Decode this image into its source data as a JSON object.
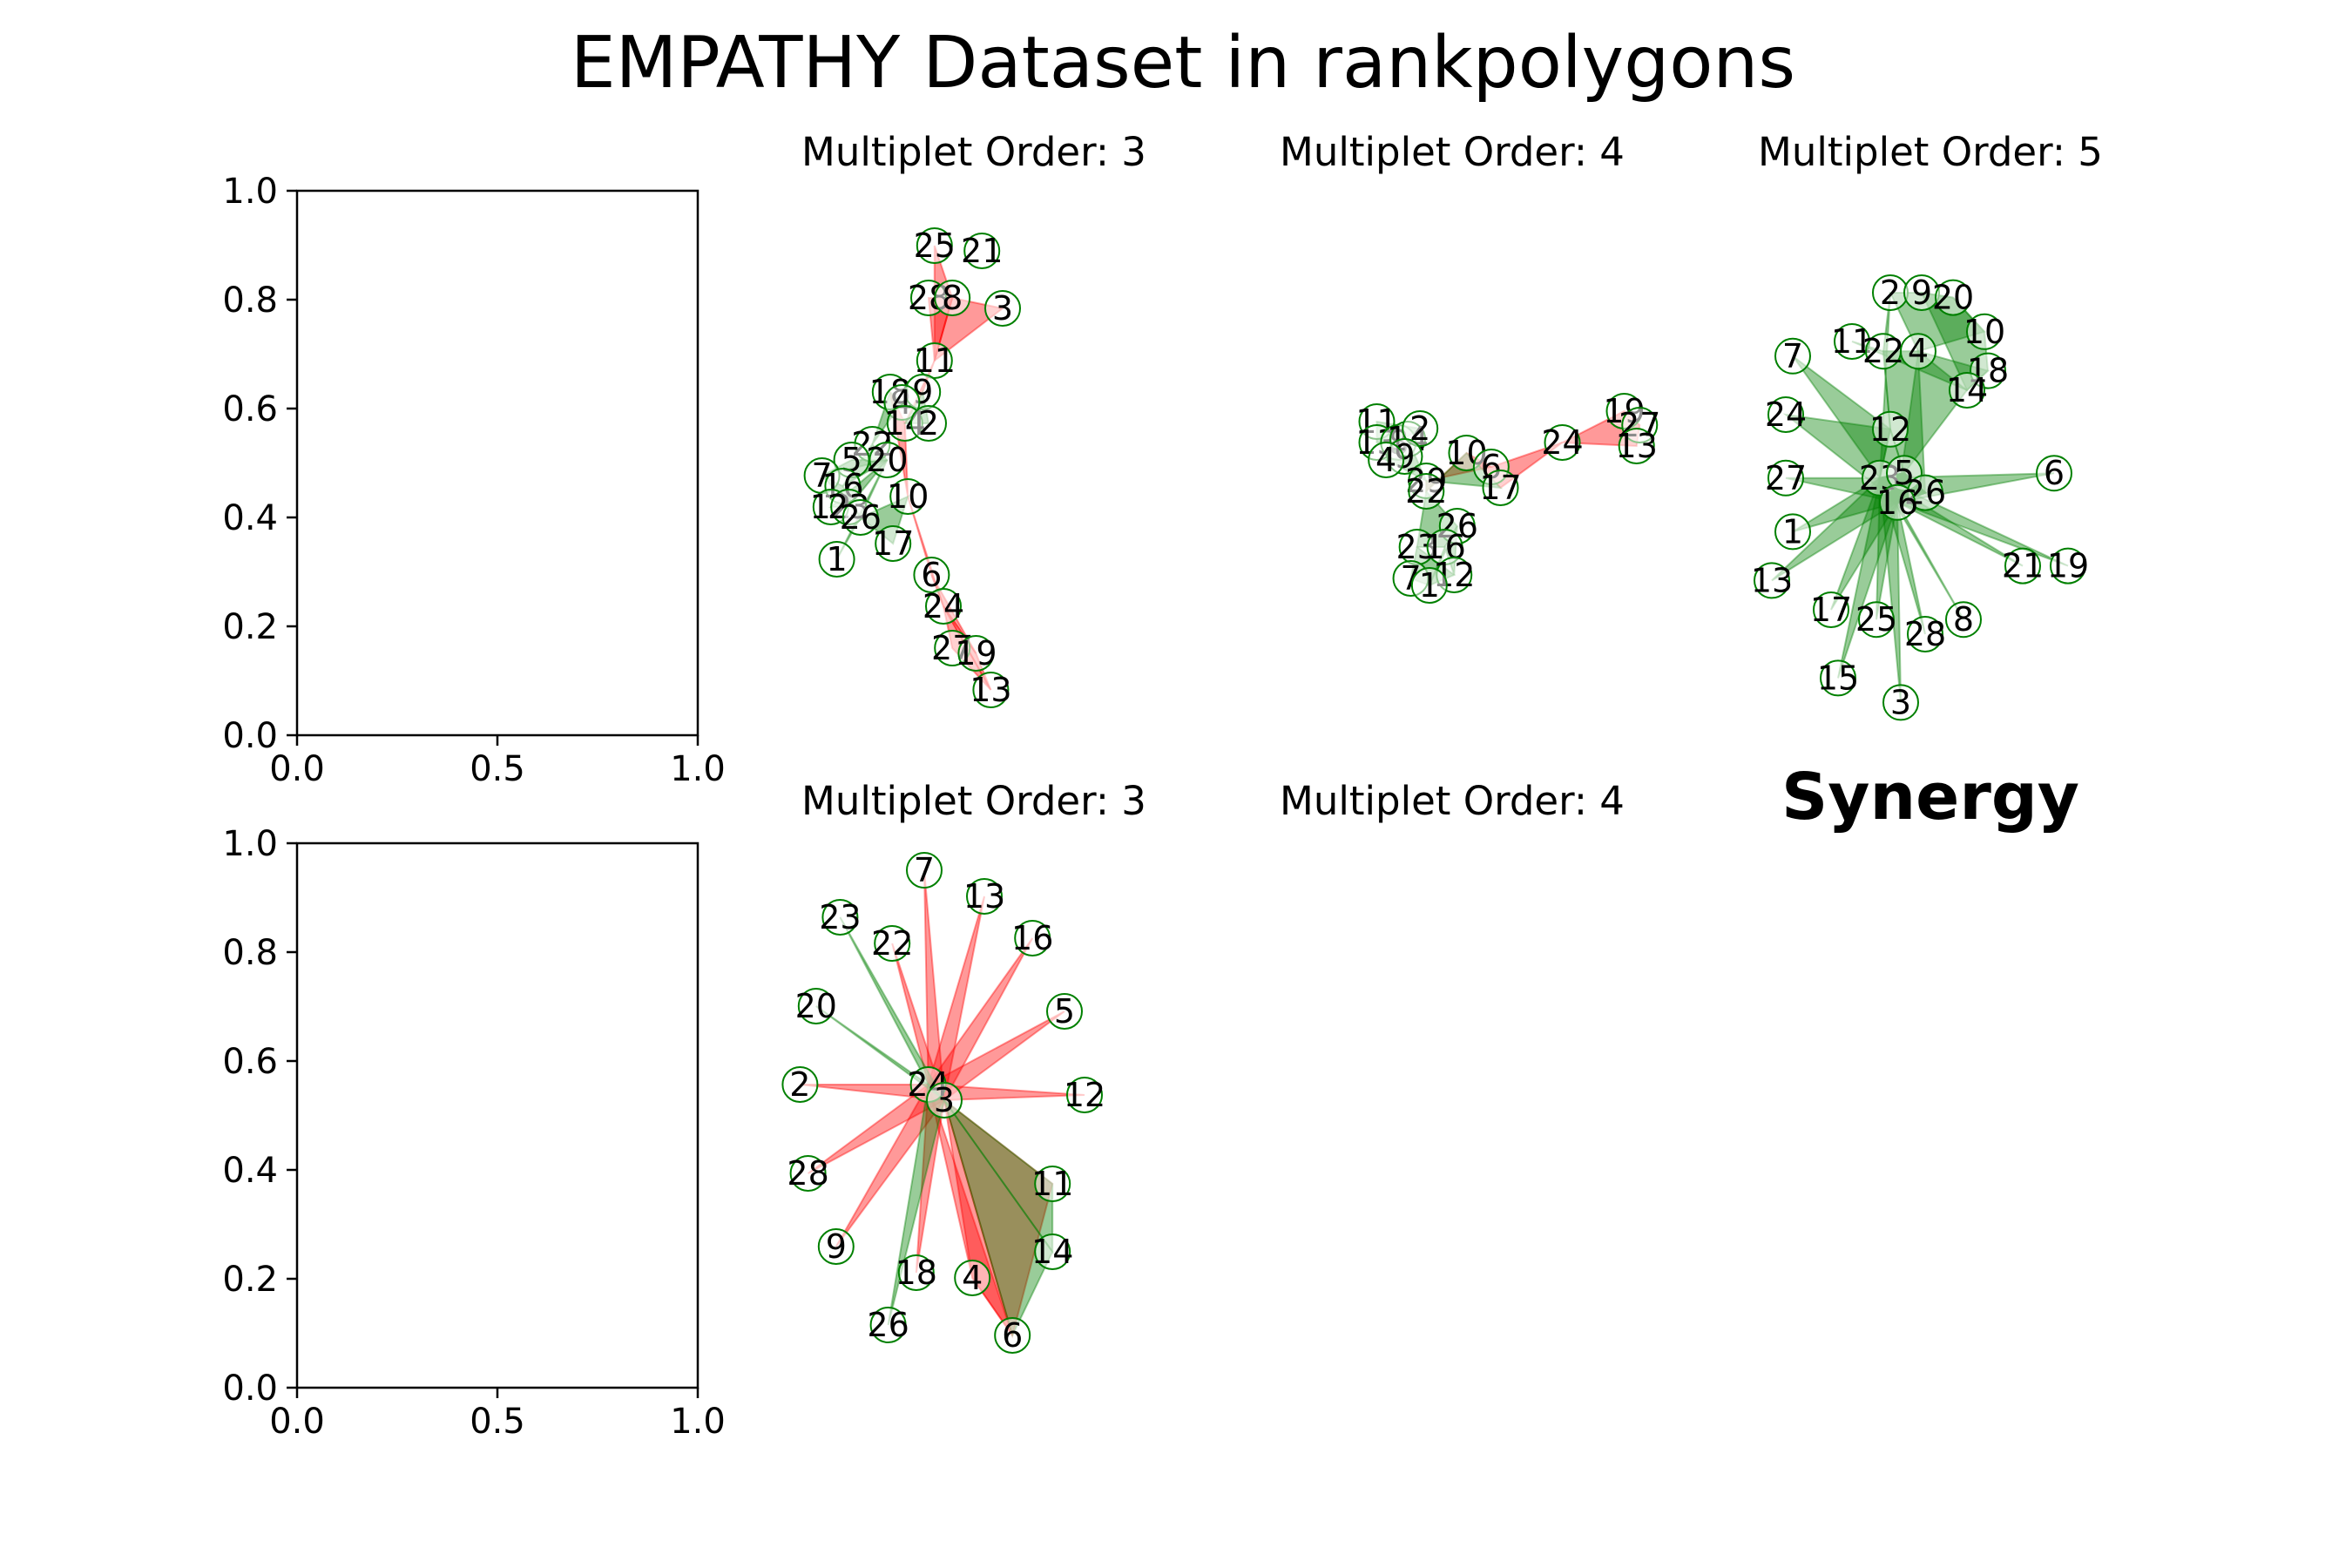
{
  "figure": {
    "title": "EMPATHY  Dataset in rankpolygons",
    "annotation": "Synergy"
  },
  "colors": {
    "redundancy_edge": "#ff0000",
    "synergy_edge": "#008000",
    "node_edge": "#008000",
    "node_face": "#ffffff"
  },
  "chart_data": [
    {
      "type": "axes",
      "panel": "row1-col1",
      "xlim": [
        0,
        1
      ],
      "ylim": [
        0,
        1
      ],
      "xticks": [
        "0.0",
        "0.5",
        "1.0"
      ],
      "yticks": [
        "0.0",
        "0.2",
        "0.4",
        "0.6",
        "0.8",
        "1.0"
      ]
    },
    {
      "type": "axes",
      "panel": "row2-col1",
      "xlim": [
        0,
        1
      ],
      "ylim": [
        0,
        1
      ],
      "xticks": [
        "0.0",
        "0.5",
        "1.0"
      ],
      "yticks": [
        "0.0",
        "0.2",
        "0.4",
        "0.6",
        "0.8",
        "1.0"
      ]
    },
    {
      "type": "network",
      "panel": "row1-col2",
      "title": "Multiplet Order: 3",
      "nodes": [
        {
          "id": "25",
          "x": 0.42,
          "y": 0.93
        },
        {
          "id": "21",
          "x": 0.58,
          "y": 0.92
        },
        {
          "id": "28",
          "x": 0.4,
          "y": 0.83
        },
        {
          "id": "8",
          "x": 0.48,
          "y": 0.83
        },
        {
          "id": "3",
          "x": 0.65,
          "y": 0.81
        },
        {
          "id": "11",
          "x": 0.42,
          "y": 0.71
        },
        {
          "id": "18",
          "x": 0.27,
          "y": 0.65
        },
        {
          "id": "9",
          "x": 0.38,
          "y": 0.65
        },
        {
          "id": "4",
          "x": 0.31,
          "y": 0.63
        },
        {
          "id": "14",
          "x": 0.32,
          "y": 0.59
        },
        {
          "id": "2",
          "x": 0.4,
          "y": 0.59
        },
        {
          "id": "22",
          "x": 0.21,
          "y": 0.55
        },
        {
          "id": "20",
          "x": 0.26,
          "y": 0.52
        },
        {
          "id": "5",
          "x": 0.14,
          "y": 0.52
        },
        {
          "id": "7",
          "x": 0.04,
          "y": 0.49
        },
        {
          "id": "16",
          "x": 0.11,
          "y": 0.47
        },
        {
          "id": "10",
          "x": 0.33,
          "y": 0.45
        },
        {
          "id": "12",
          "x": 0.07,
          "y": 0.43
        },
        {
          "id": "23",
          "x": 0.13,
          "y": 0.43
        },
        {
          "id": "26",
          "x": 0.17,
          "y": 0.41
        },
        {
          "id": "17",
          "x": 0.28,
          "y": 0.36
        },
        {
          "id": "1",
          "x": 0.09,
          "y": 0.33
        },
        {
          "id": "6",
          "x": 0.41,
          "y": 0.3
        },
        {
          "id": "24",
          "x": 0.45,
          "y": 0.24
        },
        {
          "id": "27",
          "x": 0.48,
          "y": 0.16
        },
        {
          "id": "19",
          "x": 0.56,
          "y": 0.15
        },
        {
          "id": "13",
          "x": 0.61,
          "y": 0.08
        }
      ],
      "red_hyperedges": [
        [
          "25",
          "8",
          "11"
        ],
        [
          "28",
          "8",
          "11"
        ],
        [
          "8",
          "3",
          "11"
        ],
        [
          "11",
          "9",
          "14"
        ],
        [
          "18",
          "14",
          "10"
        ],
        [
          "10",
          "6",
          "24"
        ],
        [
          "6",
          "24",
          "19"
        ],
        [
          "24",
          "27",
          "13"
        ],
        [
          "24",
          "19",
          "13"
        ]
      ],
      "green_hyperedges": [
        [
          "7",
          "5",
          "20"
        ],
        [
          "7",
          "16",
          "26"
        ],
        [
          "12",
          "23",
          "20"
        ],
        [
          "22",
          "20",
          "16"
        ],
        [
          "1",
          "26",
          "20"
        ],
        [
          "17",
          "10",
          "26"
        ],
        [
          "9",
          "2",
          "14"
        ],
        [
          "18",
          "4",
          "22"
        ]
      ]
    },
    {
      "type": "network",
      "panel": "row1-col3",
      "title": "Multiplet Order: 4",
      "nodes": [
        {
          "id": "11",
          "x": 0.1,
          "y": 0.69
        },
        {
          "id": "13",
          "x": 0.1,
          "y": 0.63
        },
        {
          "id": "8",
          "x": 0.17,
          "y": 0.63
        },
        {
          "id": "14",
          "x": 0.2,
          "y": 0.64
        },
        {
          "id": "2",
          "x": 0.24,
          "y": 0.67
        },
        {
          "id": "9",
          "x": 0.19,
          "y": 0.59
        },
        {
          "id": "4",
          "x": 0.13,
          "y": 0.58
        },
        {
          "id": "10",
          "x": 0.39,
          "y": 0.6
        },
        {
          "id": "6",
          "x": 0.47,
          "y": 0.56
        },
        {
          "id": "29",
          "x": 0.26,
          "y": 0.52
        },
        {
          "id": "22",
          "x": 0.26,
          "y": 0.49
        },
        {
          "id": "17",
          "x": 0.5,
          "y": 0.5
        },
        {
          "id": "24",
          "x": 0.7,
          "y": 0.63
        },
        {
          "id": "19",
          "x": 0.9,
          "y": 0.72
        },
        {
          "id": "27",
          "x": 0.95,
          "y": 0.68
        },
        {
          "id": "13b",
          "label": "13",
          "x": 0.94,
          "y": 0.62
        },
        {
          "id": "26",
          "x": 0.36,
          "y": 0.39
        },
        {
          "id": "23",
          "x": 0.23,
          "y": 0.33
        },
        {
          "id": "16",
          "x": 0.32,
          "y": 0.33
        },
        {
          "id": "7",
          "x": 0.21,
          "y": 0.24
        },
        {
          "id": "12",
          "x": 0.35,
          "y": 0.25
        },
        {
          "id": "1",
          "x": 0.27,
          "y": 0.22
        }
      ],
      "red_hyperedges": [
        [
          "24",
          "19",
          "27",
          "13b"
        ],
        [
          "10",
          "6",
          "24",
          "17"
        ],
        [
          "29",
          "6",
          "10",
          "22"
        ]
      ],
      "green_hyperedges": [
        [
          "11",
          "13",
          "8",
          "2"
        ],
        [
          "4",
          "9",
          "14",
          "29"
        ],
        [
          "29",
          "22",
          "10",
          "17"
        ],
        [
          "22",
          "26",
          "16",
          "23"
        ],
        [
          "23",
          "7",
          "1",
          "12"
        ],
        [
          "16",
          "12",
          "26",
          "1"
        ]
      ]
    },
    {
      "type": "network",
      "panel": "row1-col4",
      "title": "Multiplet Order: 5",
      "nodes": [
        {
          "id": "2",
          "x": 0.35,
          "y": 0.9
        },
        {
          "id": "9",
          "x": 0.44,
          "y": 0.9
        },
        {
          "id": "20",
          "x": 0.53,
          "y": 0.89
        },
        {
          "id": "10",
          "x": 0.62,
          "y": 0.82
        },
        {
          "id": "11",
          "x": 0.24,
          "y": 0.8
        },
        {
          "id": "22",
          "x": 0.33,
          "y": 0.78
        },
        {
          "id": "4",
          "x": 0.43,
          "y": 0.78
        },
        {
          "id": "18",
          "x": 0.63,
          "y": 0.74
        },
        {
          "id": "14",
          "x": 0.57,
          "y": 0.7
        },
        {
          "id": "7",
          "x": 0.07,
          "y": 0.77
        },
        {
          "id": "24",
          "x": 0.05,
          "y": 0.65
        },
        {
          "id": "12",
          "x": 0.35,
          "y": 0.62
        },
        {
          "id": "27",
          "x": 0.05,
          "y": 0.52
        },
        {
          "id": "23",
          "x": 0.32,
          "y": 0.52
        },
        {
          "id": "5",
          "x": 0.39,
          "y": 0.53
        },
        {
          "id": "26",
          "x": 0.45,
          "y": 0.49
        },
        {
          "id": "16",
          "x": 0.37,
          "y": 0.47
        },
        {
          "id": "6",
          "x": 0.82,
          "y": 0.53
        },
        {
          "id": "1",
          "x": 0.07,
          "y": 0.41
        },
        {
          "id": "21",
          "x": 0.73,
          "y": 0.34
        },
        {
          "id": "19",
          "x": 0.86,
          "y": 0.34
        },
        {
          "id": "13",
          "x": 0.01,
          "y": 0.31
        },
        {
          "id": "17",
          "x": 0.18,
          "y": 0.25
        },
        {
          "id": "25",
          "x": 0.31,
          "y": 0.23
        },
        {
          "id": "28",
          "x": 0.45,
          "y": 0.2
        },
        {
          "id": "8",
          "x": 0.56,
          "y": 0.23
        },
        {
          "id": "15",
          "x": 0.2,
          "y": 0.11
        },
        {
          "id": "3",
          "x": 0.38,
          "y": 0.06
        }
      ],
      "red_hyperedges": [],
      "green_hyperedges": [
        [
          "2",
          "9",
          "20",
          "10",
          "4"
        ],
        [
          "11",
          "22",
          "4",
          "18",
          "14"
        ],
        [
          "9",
          "20",
          "10",
          "18",
          "14"
        ],
        [
          "7",
          "12",
          "23",
          "5",
          "16"
        ],
        [
          "24",
          "12",
          "23",
          "5",
          "16"
        ],
        [
          "27",
          "23",
          "5",
          "26",
          "16"
        ],
        [
          "1",
          "23",
          "5",
          "26",
          "16"
        ],
        [
          "13",
          "23",
          "5",
          "26",
          "16"
        ],
        [
          "17",
          "23",
          "5",
          "26",
          "16"
        ],
        [
          "15",
          "23",
          "5",
          "26",
          "16"
        ],
        [
          "25",
          "23",
          "5",
          "26",
          "16"
        ],
        [
          "3",
          "23",
          "5",
          "26",
          "16"
        ],
        [
          "28",
          "23",
          "5",
          "26",
          "16"
        ],
        [
          "8",
          "23",
          "5",
          "26",
          "16"
        ],
        [
          "21",
          "23",
          "5",
          "26",
          "16"
        ],
        [
          "19",
          "23",
          "5",
          "26",
          "16"
        ],
        [
          "6",
          "23",
          "5",
          "26",
          "16"
        ],
        [
          "22",
          "12",
          "5",
          "26",
          "4"
        ],
        [
          "14",
          "5",
          "26",
          "16",
          "4"
        ],
        [
          "2",
          "22",
          "12",
          "5",
          "23"
        ]
      ]
    },
    {
      "type": "network",
      "panel": "row2-col2",
      "title": "Multiplet Order: 3",
      "nodes": [
        {
          "id": "7",
          "x": 0.35,
          "y": 0.96
        },
        {
          "id": "13",
          "x": 0.5,
          "y": 0.91
        },
        {
          "id": "16",
          "x": 0.62,
          "y": 0.83
        },
        {
          "id": "23",
          "x": 0.14,
          "y": 0.87
        },
        {
          "id": "22",
          "x": 0.27,
          "y": 0.82
        },
        {
          "id": "20",
          "x": 0.08,
          "y": 0.7
        },
        {
          "id": "5",
          "x": 0.7,
          "y": 0.69
        },
        {
          "id": "2",
          "x": 0.04,
          "y": 0.55
        },
        {
          "id": "24",
          "x": 0.36,
          "y": 0.55
        },
        {
          "id": "3",
          "x": 0.4,
          "y": 0.52
        },
        {
          "id": "12",
          "x": 0.75,
          "y": 0.53
        },
        {
          "id": "28",
          "x": 0.06,
          "y": 0.38
        },
        {
          "id": "11",
          "x": 0.67,
          "y": 0.36
        },
        {
          "id": "14",
          "x": 0.67,
          "y": 0.23
        },
        {
          "id": "9",
          "x": 0.13,
          "y": 0.24
        },
        {
          "id": "18",
          "x": 0.33,
          "y": 0.19
        },
        {
          "id": "4",
          "x": 0.47,
          "y": 0.18
        },
        {
          "id": "26",
          "x": 0.26,
          "y": 0.09
        },
        {
          "id": "6",
          "x": 0.57,
          "y": 0.07
        }
      ],
      "red_hyperedges": [
        [
          "7",
          "24",
          "3"
        ],
        [
          "13",
          "24",
          "3"
        ],
        [
          "16",
          "24",
          "3"
        ],
        [
          "5",
          "24",
          "3"
        ],
        [
          "12",
          "24",
          "3"
        ],
        [
          "2",
          "24",
          "3"
        ],
        [
          "28",
          "24",
          "3"
        ],
        [
          "9",
          "24",
          "3"
        ],
        [
          "22",
          "24",
          "3"
        ],
        [
          "18",
          "24",
          "3"
        ],
        [
          "4",
          "24",
          "6"
        ],
        [
          "11",
          "3",
          "6"
        ],
        [
          "3",
          "6",
          "4"
        ]
      ],
      "green_hyperedges": [
        [
          "23",
          "24",
          "3"
        ],
        [
          "20",
          "24",
          "3"
        ],
        [
          "26",
          "24",
          "3"
        ],
        [
          "3",
          "14",
          "6"
        ],
        [
          "3",
          "11",
          "14"
        ]
      ]
    }
  ]
}
